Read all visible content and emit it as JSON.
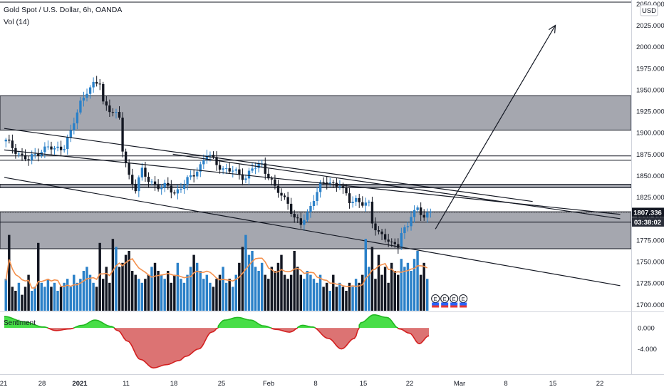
{
  "header": {
    "title": "Gold Spot / U.S. Dollar, 6h, OANDA",
    "volume_label": "Vol (14)"
  },
  "price_axis": {
    "currency": "USD",
    "last_price_label": "1807.336",
    "countdown_label": "03:38:02"
  },
  "colors": {
    "up": "#2a80c8",
    "down": "#131722",
    "zone": "#9598a1",
    "vol_ma": "#f4914e",
    "sentiment_pos": "#3ddc3d",
    "sentiment_neg": "#d65b5b",
    "price_tag_bg": "#131722",
    "countdown_bg": "#2a2e39"
  },
  "indicator": {
    "name": "Sentiment",
    "ticks": [
      "0.000",
      "-4.000"
    ]
  },
  "event_markers": [
    "E",
    "E",
    "E",
    "E"
  ],
  "chart_data": [
    {
      "type": "candlestick",
      "title": "Gold Spot / U.S. Dollar, 6h, OANDA",
      "x_tick_labels": [
        "21",
        "28",
        "2021",
        "11",
        "18",
        "25",
        "Feb",
        "8",
        "15",
        "22",
        "Mar",
        "8",
        "15",
        "22"
      ],
      "y_ticks": [
        1700,
        1725,
        1750,
        1775,
        1800,
        1825,
        1850,
        1875,
        1900,
        1925,
        1950,
        1975,
        2000,
        2025,
        2050
      ],
      "y_tick_labels": [
        "1700.000",
        "1725.000",
        "1750.000",
        "1775.000",
        "1800.000",
        "1825.000",
        "1850.000",
        "1875.000",
        "1900.000",
        "1925.000",
        "1950.000",
        "1975.000",
        "2000.000",
        "2025.000",
        "2050.000"
      ],
      "ylim": [
        1692,
        2052
      ],
      "last_price": 1807.336,
      "close_path": [
        [
          0,
          1890
        ],
        [
          3,
          1880
        ],
        [
          5,
          1872
        ],
        [
          7,
          1868
        ],
        [
          10,
          1878
        ],
        [
          13,
          1883
        ],
        [
          15,
          1880
        ],
        [
          18,
          1885
        ],
        [
          20,
          1900
        ],
        [
          23,
          1935
        ],
        [
          25,
          1950
        ],
        [
          27,
          1955
        ],
        [
          29,
          1958
        ],
        [
          30,
          1935
        ],
        [
          33,
          1925
        ],
        [
          35,
          1915
        ],
        [
          36,
          1880
        ],
        [
          38,
          1850
        ],
        [
          40,
          1835
        ],
        [
          42,
          1855
        ],
        [
          44,
          1845
        ],
        [
          46,
          1840
        ],
        [
          48,
          1835
        ],
        [
          50,
          1838
        ],
        [
          52,
          1830
        ],
        [
          55,
          1840
        ],
        [
          57,
          1848
        ],
        [
          60,
          1862
        ],
        [
          62,
          1875
        ],
        [
          64,
          1868
        ],
        [
          67,
          1858
        ],
        [
          70,
          1855
        ],
        [
          72,
          1852
        ],
        [
          74,
          1848
        ],
        [
          76,
          1858
        ],
        [
          79,
          1863
        ],
        [
          81,
          1850
        ],
        [
          83,
          1836
        ],
        [
          85,
          1826
        ],
        [
          87,
          1820
        ],
        [
          89,
          1800
        ],
        [
          91,
          1793
        ],
        [
          93,
          1806
        ],
        [
          95,
          1825
        ],
        [
          97,
          1838
        ],
        [
          99,
          1843
        ],
        [
          101,
          1841
        ],
        [
          103,
          1840
        ],
        [
          104,
          1832
        ],
        [
          106,
          1820
        ],
        [
          108,
          1823
        ],
        [
          110,
          1818
        ],
        [
          112,
          1815
        ],
        [
          113,
          1795
        ],
        [
          115,
          1785
        ],
        [
          117,
          1778
        ],
        [
          119,
          1768
        ],
        [
          121,
          1770
        ],
        [
          122,
          1785
        ],
        [
          124,
          1792
        ],
        [
          125,
          1803
        ],
        [
          127,
          1810
        ],
        [
          129,
          1805
        ],
        [
          131,
          1807
        ]
      ],
      "horizontal_zones": [
        [
          1903,
          1943
        ],
        [
          1836,
          1840
        ],
        [
          1796,
          1808
        ],
        [
          1765,
          1796
        ]
      ],
      "horizontal_lines": [
        1873,
        1868,
        1765
      ],
      "trend_lines": [
        {
          "from": [
            0,
            1905
          ],
          "to": [
            163,
            1820
          ]
        },
        {
          "from": [
            0,
            1880
          ],
          "to": [
            190,
            1805
          ]
        },
        {
          "from": [
            0,
            1848
          ],
          "to": [
            190,
            1722
          ]
        },
        {
          "from": [
            52,
            1875
          ],
          "to": [
            190,
            1800
          ]
        },
        {
          "from": [
            133,
            1788
          ],
          "to": [
            170,
            2025
          ]
        }
      ]
    },
    {
      "type": "bar",
      "title": "Vol (14)",
      "note": "volume histogram with orange moving average line",
      "relative_levels": [
        0.4,
        0.95,
        0.3,
        0.25,
        0.35,
        0.2,
        0.3,
        0.45,
        0.25,
        0.3,
        0.85,
        0.35,
        0.3,
        0.4,
        0.3,
        0.35,
        0.25,
        0.3,
        0.35,
        0.4,
        0.3,
        0.45,
        0.35,
        0.4,
        0.5,
        0.55,
        0.45,
        0.35,
        0.3,
        0.85,
        0.4,
        0.55,
        0.35,
        0.9,
        0.8,
        0.55,
        0.6,
        0.7,
        0.75,
        0.5,
        0.45,
        0.4,
        0.35,
        0.4,
        0.45,
        0.55,
        0.6,
        0.5,
        0.45,
        0.4,
        0.5,
        0.35,
        0.45,
        0.6,
        0.4,
        0.35,
        0.45,
        0.55,
        0.7,
        0.6,
        0.5,
        0.4,
        0.45,
        0.35,
        0.3,
        0.4,
        0.45,
        0.55,
        0.35,
        0.4,
        0.3,
        0.45,
        0.6,
        0.8,
        0.95,
        0.7,
        0.75,
        0.55,
        0.5,
        0.6,
        0.45,
        0.4,
        0.55,
        0.5,
        0.6,
        0.7,
        0.45,
        0.4,
        0.45,
        0.75,
        0.55,
        0.45,
        0.4,
        0.5,
        0.45,
        0.4,
        0.35,
        0.45,
        0.3,
        0.35,
        0.25,
        0.45,
        0.3,
        0.35,
        0.3,
        0.25,
        0.35,
        0.3,
        0.4,
        0.35,
        0.45,
        0.9,
        0.55,
        0.8,
        0.4,
        0.7,
        0.45,
        0.55,
        0.35,
        0.6,
        0.5,
        0.45,
        0.65,
        0.55,
        0.6,
        0.5,
        0.65,
        0.75,
        0.45,
        0.6,
        0.4
      ]
    },
    {
      "type": "area",
      "title": "Sentiment",
      "y_ticks": [
        0,
        -4
      ],
      "ylim": [
        -8.8,
        3.0
      ],
      "x": [
        0,
        6,
        12,
        16,
        20,
        24,
        28,
        33,
        35,
        38,
        42,
        46,
        50,
        54,
        56,
        60,
        64,
        68,
        72,
        76,
        80,
        84,
        88,
        92,
        95,
        100,
        104,
        108,
        110,
        114,
        118,
        122,
        125,
        128,
        131
      ],
      "values": [
        2.2,
        1.2,
        0.2,
        -0.5,
        -0.2,
        0.5,
        1.5,
        0.3,
        -0.5,
        -2.5,
        -6.0,
        -7.6,
        -7.0,
        -6.2,
        -5.4,
        -4.0,
        -0.8,
        1.5,
        2.0,
        1.5,
        0.4,
        -0.3,
        -0.8,
        0.5,
        0.2,
        -2.0,
        -4.0,
        -2.0,
        1.0,
        2.5,
        2.0,
        -0.2,
        -1.0,
        -3.0,
        -1.5
      ]
    }
  ]
}
